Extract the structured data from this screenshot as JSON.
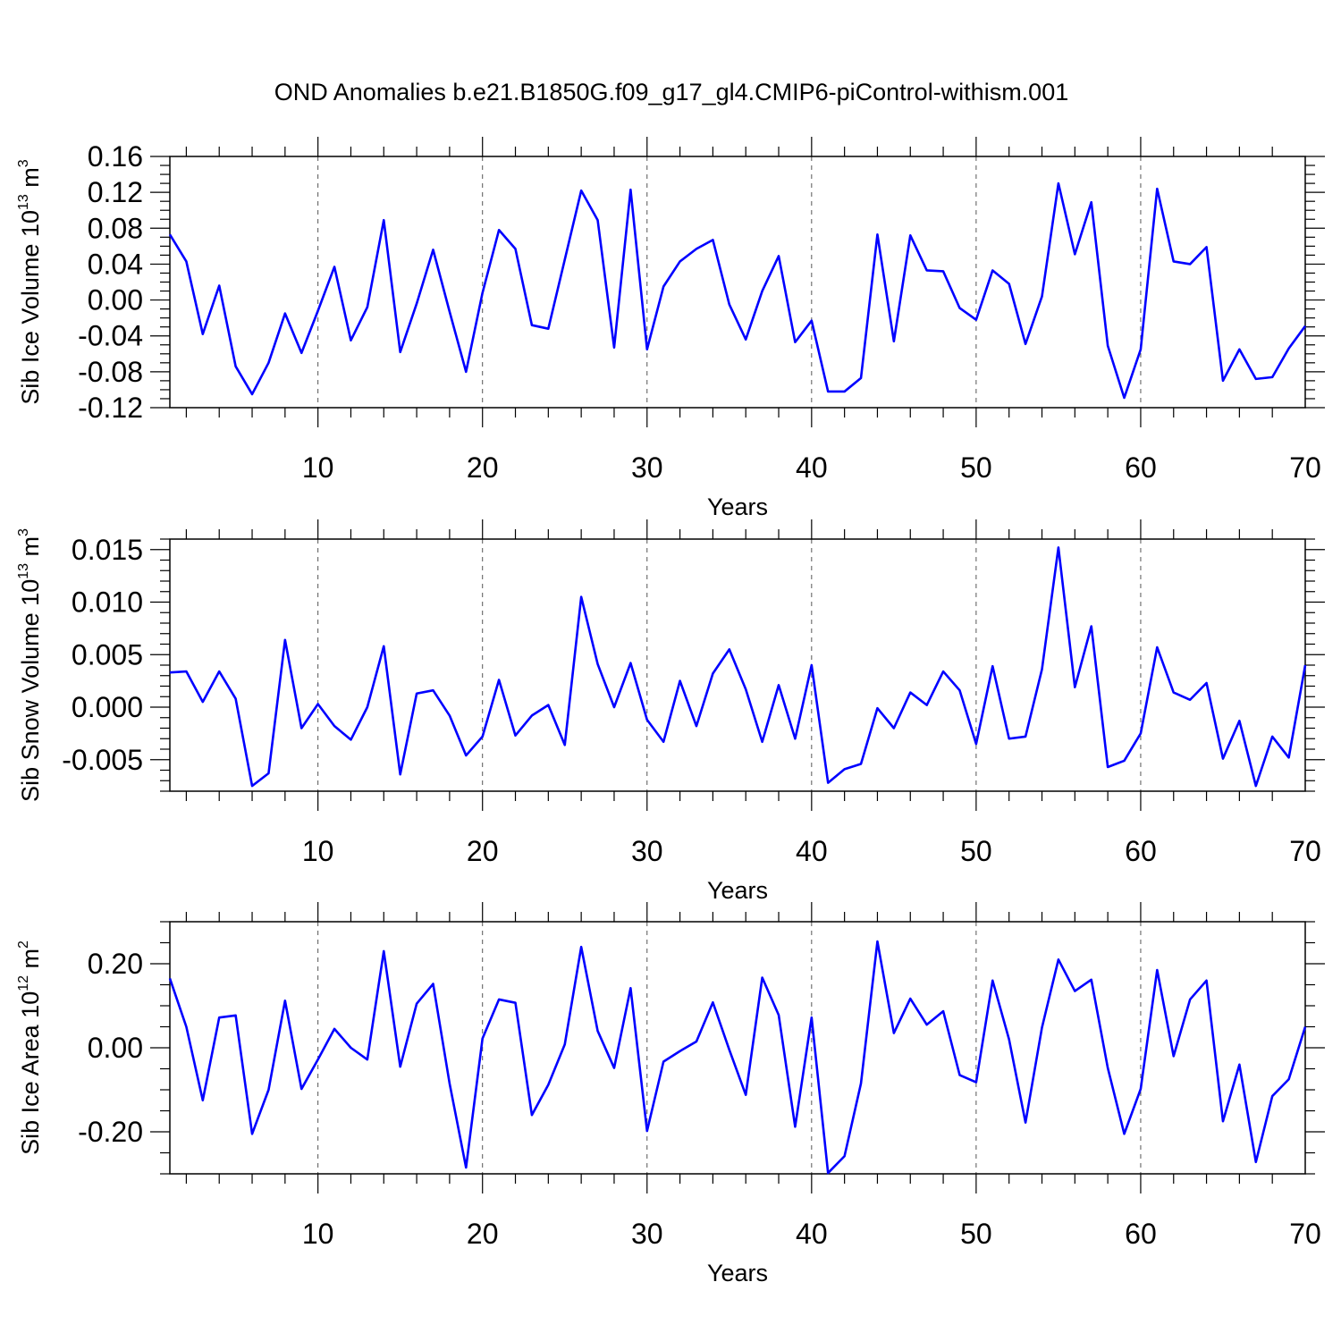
{
  "title": "OND Anomalies b.e21.B1850G.f09_g17_gl4.CMIP6-piControl-withism.001",
  "line_color": "#0000ff",
  "chart_data": [
    {
      "type": "line",
      "ylabel": "Sib Ice Volume 10",
      "ylabel_exp": "13",
      "ylabel_unit": " m",
      "ylabel_unit_exp": "3",
      "xlabel": "Years",
      "xlim": [
        1,
        70
      ],
      "ylim": [
        -0.12,
        0.16
      ],
      "x_ticks": [
        10,
        20,
        30,
        40,
        50,
        60,
        70
      ],
      "y_ticks": [
        -0.12,
        -0.08,
        -0.04,
        0.0,
        0.04,
        0.08,
        0.12,
        0.16
      ],
      "y_tick_labels": [
        "-0.12",
        "-0.08",
        "-0.04",
        "0.00",
        "0.04",
        "0.08",
        "0.12",
        "0.16"
      ],
      "y_minor_step": 0.01,
      "values": [
        0.073,
        0.043,
        -0.038,
        0.016,
        -0.074,
        -0.105,
        -0.07,
        -0.015,
        -0.059,
        -0.012,
        0.037,
        -0.045,
        -0.008,
        0.089,
        -0.058,
        -0.004,
        0.056,
        -0.013,
        -0.08,
        0.008,
        0.078,
        0.057,
        -0.028,
        -0.032,
        0.045,
        0.122,
        0.089,
        -0.053,
        0.123,
        -0.055,
        0.015,
        0.043,
        0.057,
        0.067,
        -0.005,
        -0.044,
        0.01,
        0.049,
        -0.047,
        -0.023,
        -0.102,
        -0.102,
        -0.087,
        0.073,
        -0.046,
        0.072,
        0.033,
        0.032,
        -0.009,
        -0.022,
        0.033,
        0.018,
        -0.049,
        0.004,
        0.13,
        0.051,
        0.109,
        -0.051,
        -0.109,
        -0.055,
        0.124,
        0.043,
        0.04,
        0.059,
        -0.09,
        -0.055,
        -0.088,
        -0.086,
        -0.054,
        -0.029
      ]
    },
    {
      "type": "line",
      "ylabel": "Sib Snow Volume 10",
      "ylabel_exp": "13",
      "ylabel_unit": " m",
      "ylabel_unit_exp": "3",
      "xlabel": "Years",
      "xlim": [
        1,
        70
      ],
      "ylim": [
        -0.008,
        0.016
      ],
      "x_ticks": [
        10,
        20,
        30,
        40,
        50,
        60,
        70
      ],
      "y_ticks": [
        -0.005,
        0.0,
        0.005,
        0.01,
        0.015
      ],
      "y_tick_labels": [
        "-0.005",
        "0.000",
        "0.005",
        "0.010",
        "0.015"
      ],
      "y_minor_step": 0.001,
      "values": [
        0.0033,
        0.0034,
        0.0005,
        0.0034,
        0.0008,
        -0.0075,
        -0.0063,
        0.0064,
        -0.002,
        0.0003,
        -0.0018,
        -0.0031,
        0.0,
        0.0058,
        -0.0064,
        0.0013,
        0.0016,
        -0.0008,
        -0.0046,
        -0.0028,
        0.0026,
        -0.0027,
        -0.0008,
        0.0002,
        -0.0036,
        0.0105,
        0.0041,
        0.0,
        0.0042,
        -0.0012,
        -0.0033,
        0.0025,
        -0.0018,
        0.0032,
        0.0055,
        0.0017,
        -0.0033,
        0.0021,
        -0.003,
        0.004,
        -0.0072,
        -0.0059,
        -0.0054,
        -0.0001,
        -0.002,
        0.0014,
        0.0002,
        0.0034,
        0.0016,
        -0.0035,
        0.0039,
        -0.003,
        -0.0028,
        0.0036,
        0.0152,
        0.0019,
        0.0077,
        -0.0057,
        -0.0051,
        -0.0025,
        0.0057,
        0.0014,
        0.0007,
        0.0023,
        -0.0049,
        -0.0013,
        -0.0075,
        -0.0028,
        -0.0048,
        0.004
      ]
    },
    {
      "type": "line",
      "ylabel": "Sib Ice Area 10",
      "ylabel_exp": "12",
      "ylabel_unit": " m",
      "ylabel_unit_exp": "2",
      "xlabel": "Years",
      "xlim": [
        1,
        70
      ],
      "ylim": [
        -0.3,
        0.3
      ],
      "x_ticks": [
        10,
        20,
        30,
        40,
        50,
        60,
        70
      ],
      "y_ticks": [
        -0.2,
        0.0,
        0.2
      ],
      "y_tick_labels": [
        "-0.20",
        "0.00",
        "0.20"
      ],
      "y_minor_step": 0.05,
      "values": [
        0.165,
        0.05,
        -0.125,
        0.072,
        0.077,
        -0.205,
        -0.1,
        0.112,
        -0.098,
        -0.028,
        0.045,
        0.0,
        -0.028,
        0.23,
        -0.045,
        0.105,
        0.152,
        -0.085,
        -0.285,
        0.022,
        0.115,
        0.107,
        -0.16,
        -0.088,
        0.008,
        0.24,
        0.04,
        -0.048,
        0.142,
        -0.198,
        -0.033,
        -0.008,
        0.015,
        0.108,
        -0.005,
        -0.112,
        0.167,
        0.078,
        -0.188,
        0.072,
        -0.298,
        -0.258,
        -0.085,
        0.253,
        0.035,
        0.117,
        0.055,
        0.087,
        -0.065,
        -0.082,
        0.16,
        0.02,
        -0.178,
        0.048,
        0.21,
        0.135,
        0.162,
        -0.048,
        -0.205,
        -0.098,
        0.185,
        -0.02,
        0.115,
        0.16,
        -0.175,
        -0.04,
        -0.272,
        -0.115,
        -0.075,
        0.05
      ]
    }
  ]
}
